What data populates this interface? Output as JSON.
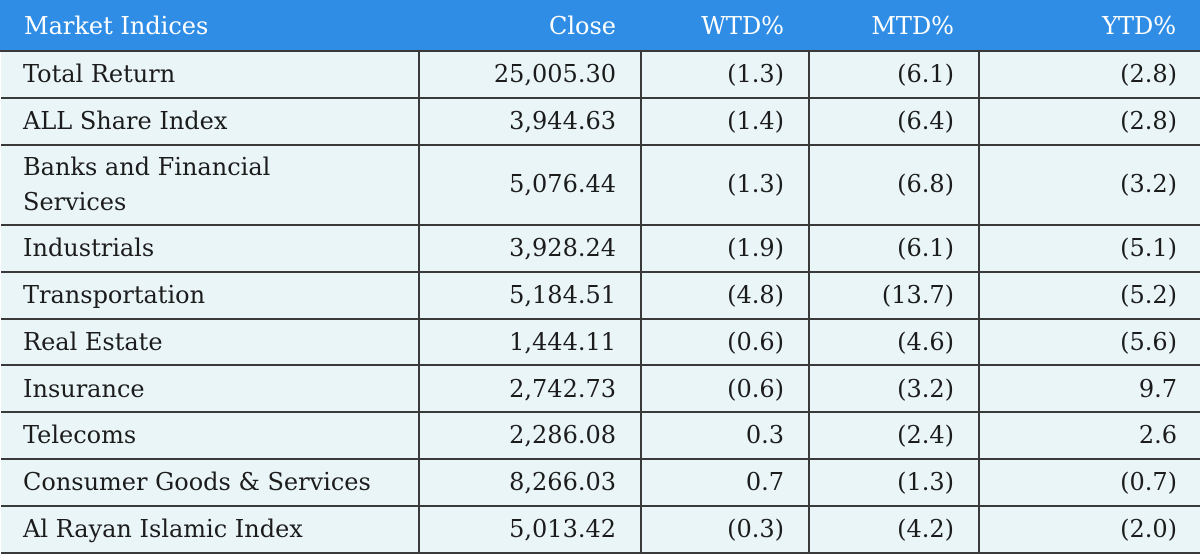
{
  "table": {
    "header": [
      "Market Indices",
      "Close",
      "WTD%",
      "MTD%",
      "YTD%"
    ],
    "rows": [
      [
        "Total Return",
        "25,005.30",
        "(1.3)",
        "(6.1)",
        "(2.8)"
      ],
      [
        "ALL Share Index",
        "3,944.63",
        "(1.4)",
        "(6.4)",
        "(2.8)"
      ],
      [
        "Banks and Financial Services",
        "5,076.44",
        "(1.3)",
        "(6.8)",
        "(3.2)"
      ],
      [
        "Industrials",
        "3,928.24",
        "(1.9)",
        "(6.1)",
        "(5.1)"
      ],
      [
        "Transportation",
        "5,184.51",
        "(4.8)",
        "(13.7)",
        "(5.2)"
      ],
      [
        "Real Estate",
        "1,444.11",
        "(0.6)",
        "(4.6)",
        "(5.6)"
      ],
      [
        "Insurance",
        "2,742.73",
        "(0.6)",
        "(3.2)",
        "9.7"
      ],
      [
        "Telecoms",
        "2,286.08",
        "0.3",
        "(2.4)",
        "2.6"
      ],
      [
        "Consumer Goods & Services",
        "8,266.03",
        "0.7",
        "(1.3)",
        "(0.7)"
      ],
      [
        "Al Rayan Islamic Index",
        "5,013.42",
        "(0.3)",
        "(4.2)",
        "(2.0)"
      ]
    ]
  }
}
